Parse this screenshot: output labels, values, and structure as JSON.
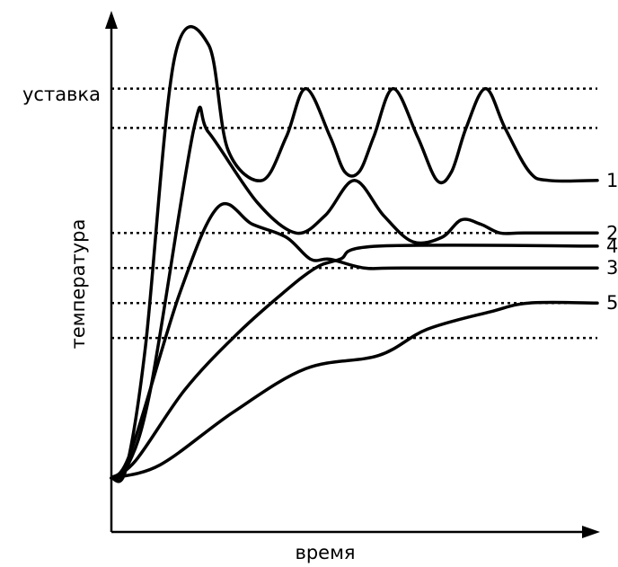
{
  "chart_data": {
    "type": "line",
    "title": "",
    "xlabel": "время",
    "ylabel": "температура",
    "setpoint_label": "уставка",
    "grid": false,
    "legend": "inline labels at right end of curves",
    "xlim": [
      0,
      100
    ],
    "ylim": [
      0,
      100
    ],
    "reference_levels": [
      {
        "name": "уставка",
        "y": 89
      },
      {
        "y": 80
      },
      {
        "y": 56
      },
      {
        "y": 48
      },
      {
        "y": 40
      },
      {
        "y": 32
      }
    ],
    "series": [
      {
        "name": "1",
        "points": [
          [
            0,
            0
          ],
          [
            3,
            2
          ],
          [
            7,
            30
          ],
          [
            13,
            96
          ],
          [
            20,
            99
          ],
          [
            24,
            75
          ],
          [
            31,
            68
          ],
          [
            36,
            78
          ],
          [
            40,
            89
          ],
          [
            45,
            78
          ],
          [
            48,
            70
          ],
          [
            51,
            70
          ],
          [
            54,
            78
          ],
          [
            58,
            89
          ],
          [
            63,
            78
          ],
          [
            67,
            68
          ],
          [
            70,
            70
          ],
          [
            73,
            80
          ],
          [
            77,
            89
          ],
          [
            81,
            80
          ],
          [
            86,
            70
          ],
          [
            90,
            68
          ],
          [
            100,
            68
          ]
        ]
      },
      {
        "name": "2",
        "points": [
          [
            0,
            0
          ],
          [
            3,
            2
          ],
          [
            8,
            20
          ],
          [
            17,
            80
          ],
          [
            20,
            79
          ],
          [
            30,
            63
          ],
          [
            38,
            56
          ],
          [
            44,
            60
          ],
          [
            50,
            68
          ],
          [
            56,
            60
          ],
          [
            62,
            54
          ],
          [
            68,
            55
          ],
          [
            72,
            59
          ],
          [
            76,
            58
          ],
          [
            80,
            56
          ],
          [
            85,
            56
          ],
          [
            100,
            56
          ]
        ]
      },
      {
        "name": "3",
        "points": [
          [
            0,
            0
          ],
          [
            4,
            6
          ],
          [
            14,
            42
          ],
          [
            22,
            62
          ],
          [
            29,
            58
          ],
          [
            36,
            55
          ],
          [
            41,
            50
          ],
          [
            45,
            50
          ],
          [
            52,
            48
          ],
          [
            60,
            48
          ],
          [
            100,
            48
          ]
        ]
      },
      {
        "name": "4",
        "points": [
          [
            0,
            0
          ],
          [
            5,
            4
          ],
          [
            15,
            20
          ],
          [
            25,
            32
          ],
          [
            35,
            42
          ],
          [
            42,
            48
          ],
          [
            47,
            50
          ],
          [
            55,
            53
          ],
          [
            100,
            53
          ]
        ]
      },
      {
        "name": "5",
        "points": [
          [
            0,
            0
          ],
          [
            10,
            3
          ],
          [
            25,
            15
          ],
          [
            40,
            25
          ],
          [
            55,
            28
          ],
          [
            65,
            34
          ],
          [
            78,
            38
          ],
          [
            86,
            40
          ],
          [
            100,
            40
          ]
        ]
      }
    ]
  }
}
